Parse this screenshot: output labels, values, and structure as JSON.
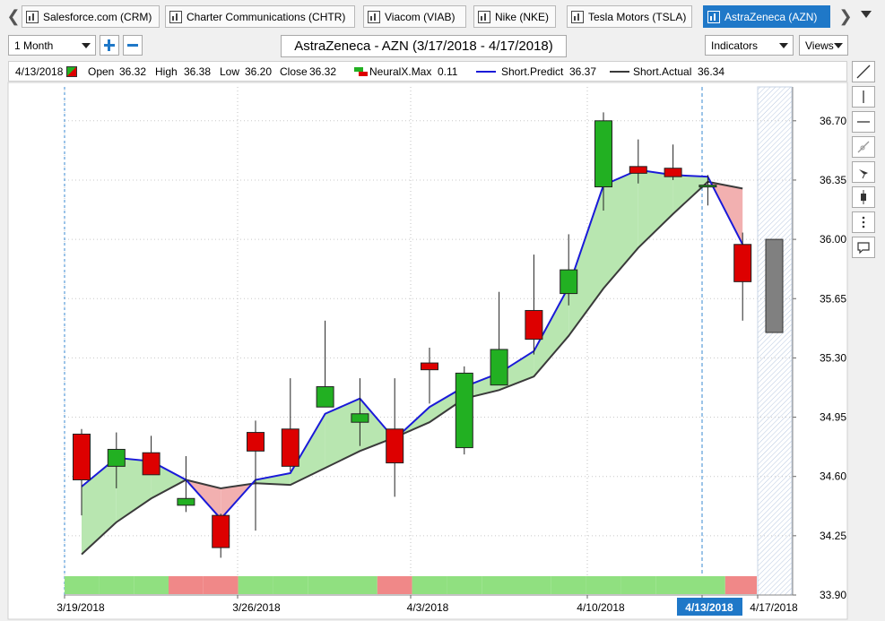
{
  "tabs": [
    {
      "label": "Salesforce.com (CRM)",
      "active": false
    },
    {
      "label": "Charter Communications (CHTR)",
      "active": false
    },
    {
      "label": "Viacom (VIAB)",
      "active": false
    },
    {
      "label": "Nike (NKE)",
      "active": false
    },
    {
      "label": "Tesla Motors (TSLA)",
      "active": false
    },
    {
      "label": "AstraZeneca (AZN)",
      "active": true
    }
  ],
  "toolbar": {
    "period": "1 Month",
    "title": "AstraZeneca - AZN (3/17/2018 - 4/17/2018)",
    "indicators": "Indicators",
    "views": "Views"
  },
  "info": {
    "date": "4/13/2018",
    "open_label": "Open",
    "open": "36.32",
    "high_label": "High",
    "high": "36.38",
    "low_label": "Low",
    "low": "36.20",
    "close_label": "Close",
    "close": "36.32",
    "neural_label": "NeuralX.Max",
    "neural": "0.11",
    "predict_label": "Short.Predict",
    "predict": "36.37",
    "actual_label": "Short.Actual",
    "actual": "36.34"
  },
  "colors": {
    "up": "#22b022",
    "down": "#dd0000",
    "predict": "#1a1ad8",
    "actual": "#3a3a3a",
    "fill_up": "#b8e6b0",
    "fill_down": "#f2b0b0",
    "band_green": "#90e080",
    "band_red": "#f08888",
    "highlight_date": "#1f78c8"
  },
  "chart_data": {
    "type": "candlestick",
    "ylim": [
      33.9,
      36.9
    ],
    "yticks": [
      "36.70",
      "36.35",
      "36.00",
      "35.65",
      "35.30",
      "34.95",
      "34.60",
      "34.25",
      "33.90"
    ],
    "xticks": [
      {
        "label": "3/19/2018",
        "highlight": false
      },
      {
        "label": "3/26/2018",
        "highlight": false
      },
      {
        "label": "4/3/2018",
        "highlight": false
      },
      {
        "label": "4/10/2018",
        "highlight": false
      },
      {
        "label": "4/13/2018",
        "highlight": true
      },
      {
        "label": "4/17/2018",
        "highlight": false
      }
    ],
    "candles": [
      {
        "o": 34.85,
        "h": 34.88,
        "l": 34.37,
        "c": 34.58
      },
      {
        "o": 34.66,
        "h": 34.86,
        "l": 34.53,
        "c": 34.76
      },
      {
        "o": 34.74,
        "h": 34.84,
        "l": 34.61,
        "c": 34.61
      },
      {
        "o": 34.43,
        "h": 34.72,
        "l": 34.39,
        "c": 34.47
      },
      {
        "o": 34.37,
        "h": 34.38,
        "l": 34.12,
        "c": 34.18
      },
      {
        "o": 34.86,
        "h": 34.93,
        "l": 34.28,
        "c": 34.75
      },
      {
        "o": 34.88,
        "h": 35.18,
        "l": 34.63,
        "c": 34.66
      },
      {
        "o": 35.01,
        "h": 35.52,
        "l": 35.02,
        "c": 35.13
      },
      {
        "o": 34.92,
        "h": 35.18,
        "l": 34.78,
        "c": 34.97
      },
      {
        "o": 34.88,
        "h": 35.18,
        "l": 34.48,
        "c": 34.68
      },
      {
        "o": 35.27,
        "h": 35.36,
        "l": 35.03,
        "c": 35.23
      },
      {
        "o": 34.77,
        "h": 35.25,
        "l": 34.73,
        "c": 35.21
      },
      {
        "o": 35.14,
        "h": 35.69,
        "l": 35.14,
        "c": 35.35
      },
      {
        "o": 35.58,
        "h": 35.91,
        "l": 35.32,
        "c": 35.41
      },
      {
        "o": 35.68,
        "h": 36.03,
        "l": 35.61,
        "c": 35.82
      },
      {
        "o": 36.31,
        "h": 36.75,
        "l": 36.17,
        "c": 36.7
      },
      {
        "o": 36.43,
        "h": 36.59,
        "l": 36.33,
        "c": 36.39
      },
      {
        "o": 36.42,
        "h": 36.56,
        "l": 36.35,
        "c": 36.37
      },
      {
        "o": 36.32,
        "h": 36.38,
        "l": 36.2,
        "c": 36.32
      },
      {
        "o": 35.97,
        "h": 36.04,
        "l": 35.52,
        "c": 35.75
      }
    ],
    "forecast": {
      "high": 36.0,
      "low": 35.45
    },
    "short_predict": [
      34.54,
      34.71,
      34.69,
      34.58,
      34.35,
      34.58,
      34.62,
      34.97,
      35.06,
      34.82,
      35.01,
      35.13,
      35.21,
      35.34,
      35.72,
      36.32,
      36.41,
      36.38,
      36.37,
      35.97
    ],
    "short_actual": [
      34.14,
      34.33,
      34.47,
      34.58,
      34.53,
      34.56,
      34.55,
      34.65,
      34.75,
      34.83,
      34.92,
      35.06,
      35.11,
      35.19,
      35.43,
      35.71,
      35.95,
      36.15,
      36.34,
      36.3
    ],
    "neural_band": [
      "up",
      "up",
      "up",
      "down",
      "down",
      "up",
      "up",
      "up",
      "up",
      "down",
      "up",
      "up",
      "up",
      "up",
      "up",
      "up",
      "up",
      "up",
      "up",
      "down"
    ]
  }
}
